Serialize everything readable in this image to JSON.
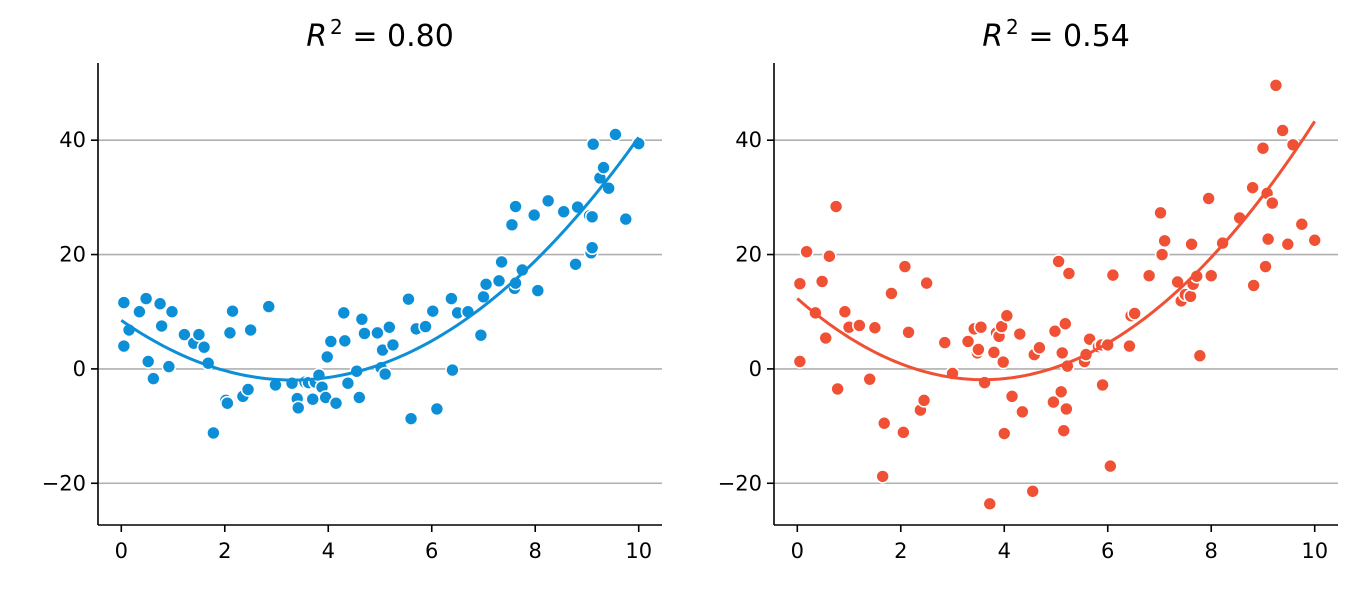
{
  "chart_data": [
    {
      "type": "scatter",
      "title_prefix": "R",
      "title_sup": "2",
      "title_suffix": " = 0.80",
      "color": "#0c8fd6",
      "xlim": [
        -0.45,
        10.45
      ],
      "ylim": [
        -27.3,
        53.5
      ],
      "x_ticks": [
        0,
        2,
        4,
        6,
        8,
        10
      ],
      "x_tick_labels": [
        "0",
        "2",
        "4",
        "6",
        "8",
        "10"
      ],
      "y_ticks": [
        -20,
        0,
        20,
        40
      ],
      "y_tick_labels": [
        "−20",
        "0",
        "20",
        "40"
      ],
      "grid": "horizontal",
      "fit": {
        "type": "quadratic",
        "x_range": [
          0,
          10
        ],
        "a": 0.95,
        "b": -6.3,
        "c": 8.5
      },
      "points": [
        [
          0.05,
          11.6
        ],
        [
          0.05,
          4.0
        ],
        [
          0.15,
          6.8
        ],
        [
          0.35,
          10.0
        ],
        [
          0.48,
          12.3
        ],
        [
          0.52,
          1.3
        ],
        [
          0.62,
          -1.7
        ],
        [
          0.75,
          11.4
        ],
        [
          0.78,
          7.5
        ],
        [
          0.92,
          0.4
        ],
        [
          0.98,
          10.0
        ],
        [
          1.22,
          6.0
        ],
        [
          1.4,
          4.5
        ],
        [
          1.5,
          6.0
        ],
        [
          1.6,
          3.8
        ],
        [
          1.68,
          1.0
        ],
        [
          1.78,
          -11.2
        ],
        [
          2.02,
          -5.5
        ],
        [
          2.05,
          -6.0
        ],
        [
          2.1,
          6.3
        ],
        [
          2.15,
          10.1
        ],
        [
          2.35,
          -4.8
        ],
        [
          2.45,
          -3.6
        ],
        [
          2.5,
          6.8
        ],
        [
          2.85,
          10.9
        ],
        [
          2.98,
          -2.8
        ],
        [
          3.3,
          -2.5
        ],
        [
          3.4,
          -5.2
        ],
        [
          3.42,
          -6.8
        ],
        [
          3.55,
          -2.3
        ],
        [
          3.62,
          -2.4
        ],
        [
          3.7,
          -5.3
        ],
        [
          3.75,
          -2.3
        ],
        [
          3.82,
          -1.1
        ],
        [
          3.88,
          -3.2
        ],
        [
          3.95,
          -5.0
        ],
        [
          3.98,
          2.1
        ],
        [
          4.05,
          4.8
        ],
        [
          4.15,
          -6.0
        ],
        [
          4.3,
          9.8
        ],
        [
          4.32,
          4.9
        ],
        [
          4.38,
          -2.5
        ],
        [
          4.55,
          -0.4
        ],
        [
          4.6,
          -5.0
        ],
        [
          4.65,
          8.7
        ],
        [
          4.7,
          6.2
        ],
        [
          4.95,
          6.3
        ],
        [
          5.02,
          0.2
        ],
        [
          5.05,
          3.3
        ],
        [
          5.1,
          -0.9
        ],
        [
          5.18,
          7.3
        ],
        [
          5.25,
          4.2
        ],
        [
          5.55,
          12.2
        ],
        [
          5.6,
          -8.7
        ],
        [
          5.7,
          7.0
        ],
        [
          5.88,
          7.4
        ],
        [
          6.02,
          10.1
        ],
        [
          6.1,
          -7.0
        ],
        [
          6.38,
          12.3
        ],
        [
          6.4,
          -0.2
        ],
        [
          6.5,
          9.8
        ],
        [
          6.7,
          10.0
        ],
        [
          6.95,
          5.9
        ],
        [
          7.0,
          12.6
        ],
        [
          7.05,
          14.8
        ],
        [
          7.3,
          15.4
        ],
        [
          7.35,
          18.7
        ],
        [
          7.55,
          25.2
        ],
        [
          7.6,
          14.1
        ],
        [
          7.62,
          15.0
        ],
        [
          7.62,
          28.4
        ],
        [
          7.75,
          17.3
        ],
        [
          7.98,
          26.9
        ],
        [
          8.05,
          13.7
        ],
        [
          8.25,
          29.4
        ],
        [
          8.55,
          27.5
        ],
        [
          8.78,
          18.3
        ],
        [
          8.82,
          28.3
        ],
        [
          9.05,
          26.8
        ],
        [
          9.08,
          20.3
        ],
        [
          9.1,
          21.2
        ],
        [
          9.1,
          26.6
        ],
        [
          9.12,
          39.3
        ],
        [
          9.25,
          33.4
        ],
        [
          9.32,
          35.2
        ],
        [
          9.42,
          31.6
        ],
        [
          9.55,
          41.0
        ],
        [
          9.75,
          26.2
        ],
        [
          10.0,
          39.4
        ]
      ]
    },
    {
      "type": "scatter",
      "title_prefix": "R",
      "title_sup": "2",
      "title_suffix": " = 0.54",
      "color": "#f05033",
      "xlim": [
        -0.45,
        10.45
      ],
      "ylim": [
        -27.3,
        53.5
      ],
      "x_ticks": [
        0,
        2,
        4,
        6,
        8,
        10
      ],
      "x_tick_labels": [
        "0",
        "2",
        "4",
        "6",
        "8",
        "10"
      ],
      "y_ticks": [
        -20,
        0,
        20,
        40
      ],
      "y_tick_labels": [
        "−20",
        "0",
        "20",
        "40"
      ],
      "grid": "horizontal",
      "fit": {
        "type": "quadratic",
        "x_range": [
          0,
          10
        ],
        "a": 1.1,
        "b": -7.9,
        "c": 12.3
      },
      "points": [
        [
          0.05,
          14.9
        ],
        [
          0.05,
          1.3
        ],
        [
          0.18,
          20.5
        ],
        [
          0.35,
          9.8
        ],
        [
          0.48,
          15.3
        ],
        [
          0.55,
          5.4
        ],
        [
          0.62,
          19.7
        ],
        [
          0.75,
          28.4
        ],
        [
          0.78,
          -3.5
        ],
        [
          0.92,
          10.0
        ],
        [
          1.0,
          7.3
        ],
        [
          1.2,
          7.6
        ],
        [
          1.4,
          -1.8
        ],
        [
          1.5,
          7.2
        ],
        [
          1.65,
          -18.8
        ],
        [
          1.68,
          -9.5
        ],
        [
          1.82,
          13.2
        ],
        [
          2.05,
          -11.1
        ],
        [
          2.08,
          17.9
        ],
        [
          2.15,
          6.4
        ],
        [
          2.38,
          -7.2
        ],
        [
          2.45,
          -5.5
        ],
        [
          2.5,
          15.0
        ],
        [
          2.85,
          4.6
        ],
        [
          3.0,
          -0.8
        ],
        [
          3.3,
          4.8
        ],
        [
          3.42,
          7.0
        ],
        [
          3.48,
          2.8
        ],
        [
          3.5,
          3.4
        ],
        [
          3.55,
          7.3
        ],
        [
          3.62,
          -2.4
        ],
        [
          3.72,
          -23.6
        ],
        [
          3.8,
          2.9
        ],
        [
          3.85,
          6.3
        ],
        [
          3.9,
          5.7
        ],
        [
          3.95,
          7.4
        ],
        [
          3.98,
          1.2
        ],
        [
          4.0,
          -11.3
        ],
        [
          4.05,
          9.3
        ],
        [
          4.15,
          -4.8
        ],
        [
          4.3,
          6.1
        ],
        [
          4.32,
          -7.5
        ],
        [
          4.35,
          -7.5
        ],
        [
          4.55,
          -21.4
        ],
        [
          4.58,
          2.5
        ],
        [
          4.68,
          3.7
        ],
        [
          4.95,
          -5.8
        ],
        [
          4.98,
          6.6
        ],
        [
          5.05,
          18.8
        ],
        [
          5.1,
          -4.0
        ],
        [
          5.12,
          2.8
        ],
        [
          5.15,
          -10.8
        ],
        [
          5.18,
          7.9
        ],
        [
          5.2,
          -7.0
        ],
        [
          5.22,
          0.5
        ],
        [
          5.25,
          16.7
        ],
        [
          5.55,
          1.3
        ],
        [
          5.58,
          2.5
        ],
        [
          5.65,
          5.2
        ],
        [
          5.82,
          3.9
        ],
        [
          5.88,
          4.2
        ],
        [
          5.9,
          -2.8
        ],
        [
          6.0,
          4.2
        ],
        [
          6.05,
          -17.0
        ],
        [
          6.1,
          16.4
        ],
        [
          6.42,
          4.0
        ],
        [
          6.45,
          9.3
        ],
        [
          6.52,
          9.7
        ],
        [
          6.8,
          16.3
        ],
        [
          7.02,
          27.3
        ],
        [
          7.05,
          20.0
        ],
        [
          7.1,
          22.4
        ],
        [
          7.35,
          15.2
        ],
        [
          7.42,
          11.9
        ],
        [
          7.5,
          13.0
        ],
        [
          7.6,
          12.7
        ],
        [
          7.62,
          21.8
        ],
        [
          7.65,
          14.8
        ],
        [
          7.72,
          16.2
        ],
        [
          7.78,
          2.3
        ],
        [
          7.95,
          29.8
        ],
        [
          8.0,
          16.3
        ],
        [
          8.22,
          22.0
        ],
        [
          8.55,
          26.4
        ],
        [
          8.8,
          31.7
        ],
        [
          8.82,
          14.6
        ],
        [
          9.0,
          38.6
        ],
        [
          9.05,
          17.9
        ],
        [
          9.08,
          30.7
        ],
        [
          9.1,
          22.7
        ],
        [
          9.18,
          29.0
        ],
        [
          9.25,
          49.6
        ],
        [
          9.38,
          41.7
        ],
        [
          9.48,
          21.8
        ],
        [
          9.58,
          39.2
        ],
        [
          9.75,
          25.3
        ],
        [
          10.0,
          22.5
        ]
      ]
    }
  ]
}
